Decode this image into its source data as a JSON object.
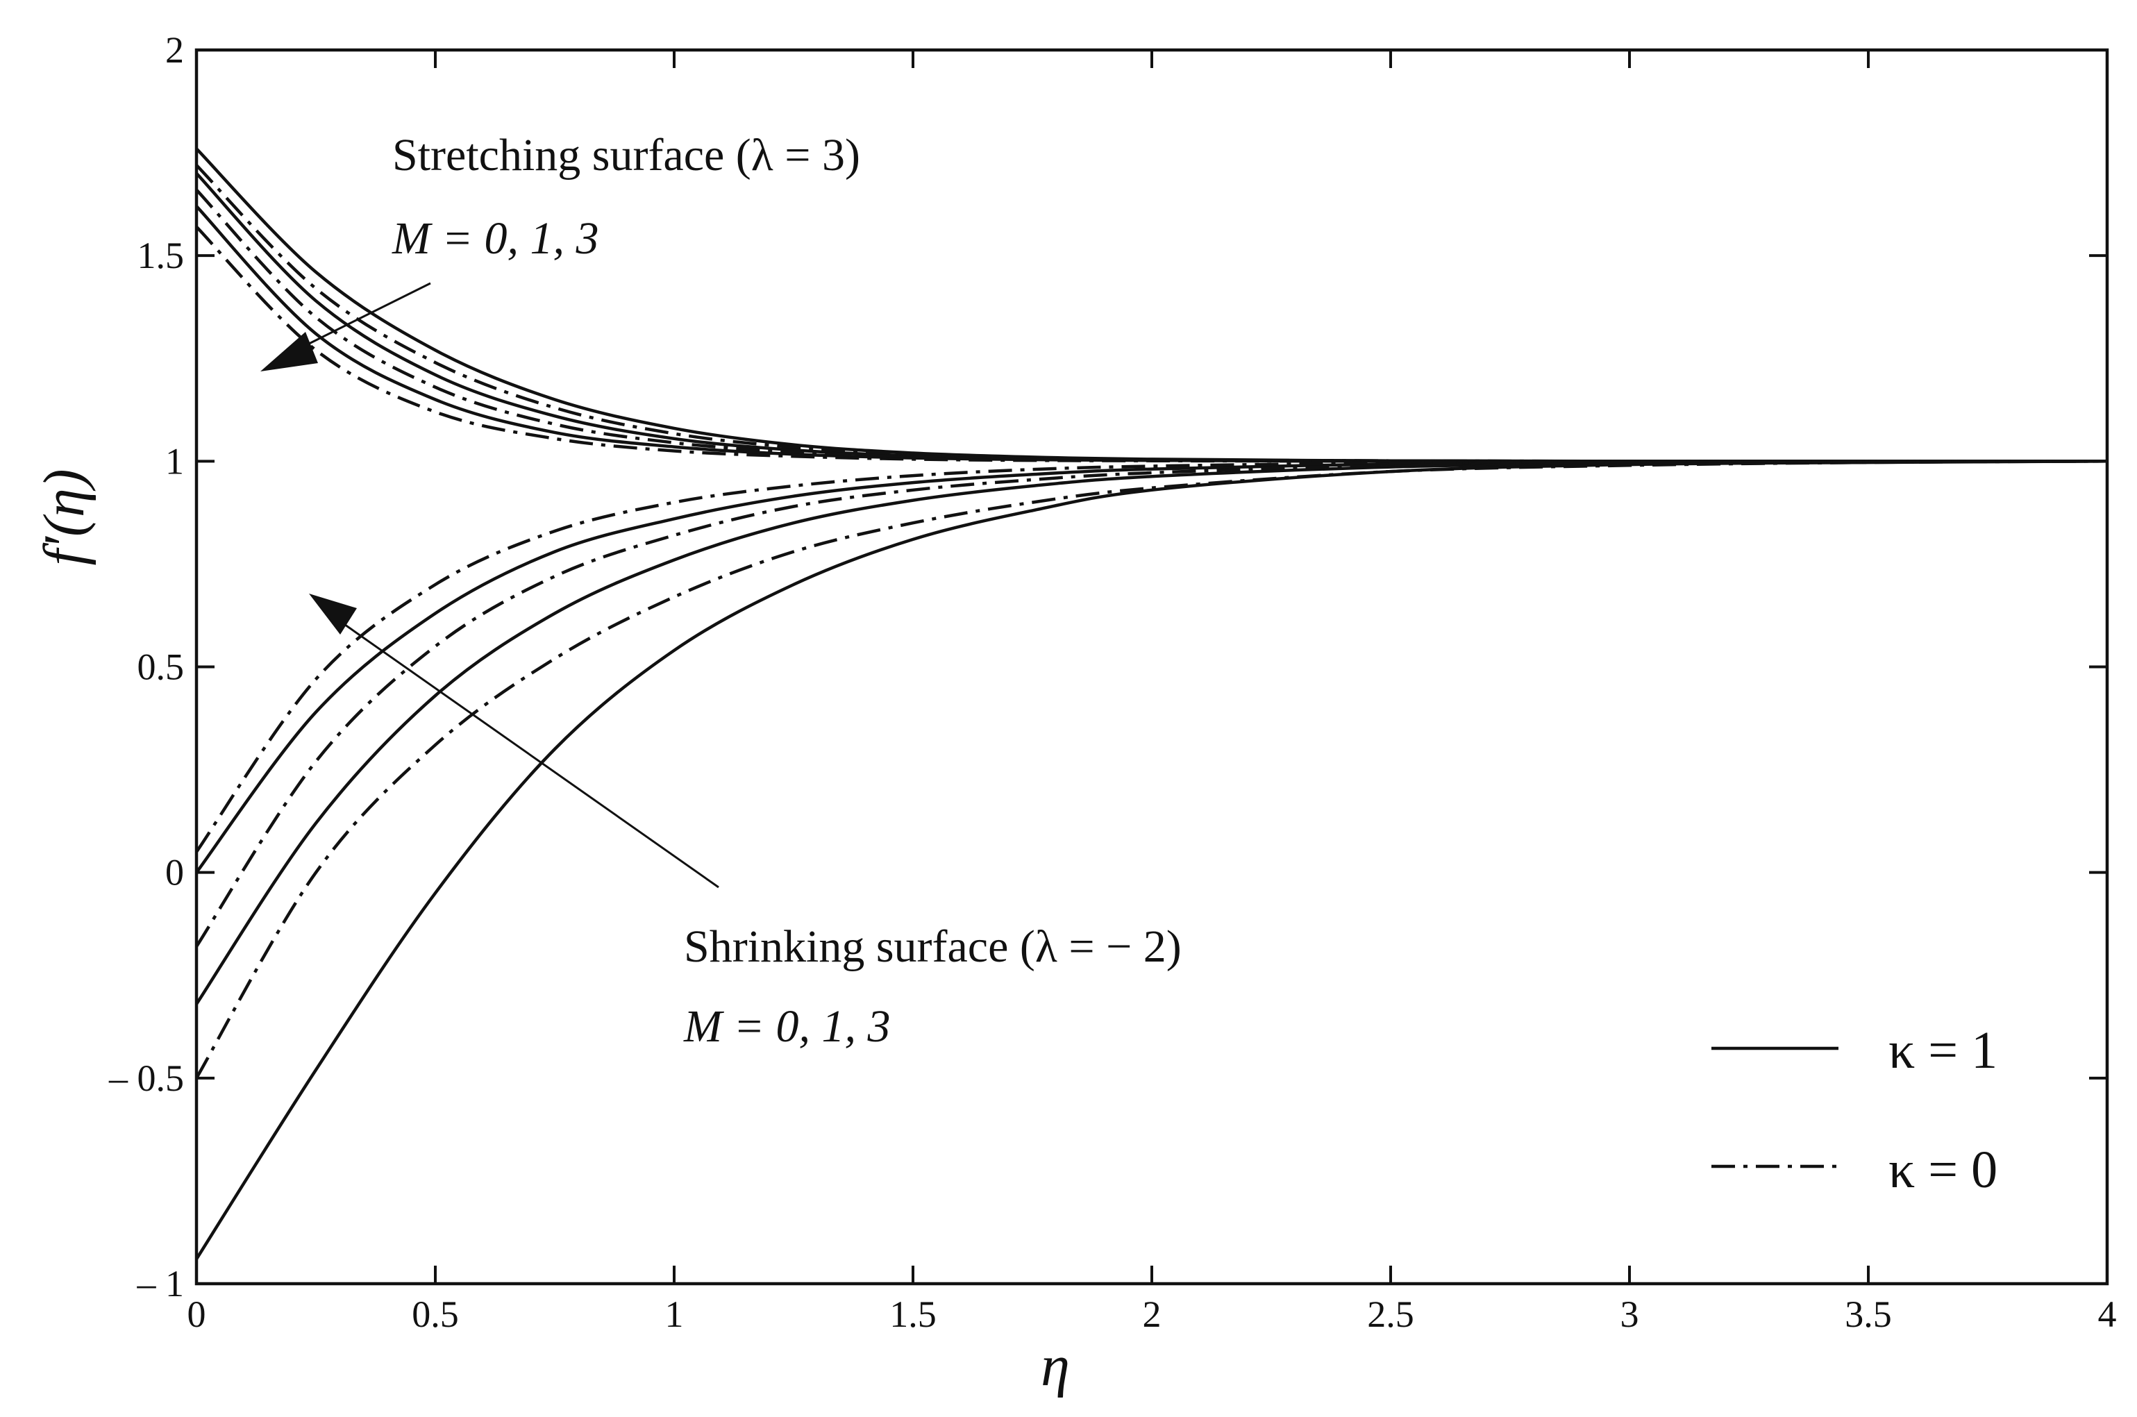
{
  "chart_data": {
    "type": "line",
    "title": "",
    "xlabel": "η",
    "ylabel": "f′(η)",
    "xlim": [
      0,
      4
    ],
    "ylim": [
      -1,
      2
    ],
    "xticks": [
      "0",
      "0.5",
      "1",
      "1.5",
      "2",
      "2.5",
      "3",
      "3.5",
      "4"
    ],
    "yticks": [
      "– 1",
      "– 0.5",
      "0",
      "0.5",
      "1",
      "1.5",
      "2"
    ],
    "x": [
      0,
      0.25,
      0.5,
      0.75,
      1,
      1.25,
      1.5,
      1.75,
      2,
      2.5,
      3,
      3.5,
      4
    ],
    "series": [
      {
        "name": "Stretching λ=3, κ=1, M=0",
        "style": "solid",
        "values": [
          1.76,
          1.46,
          1.27,
          1.15,
          1.08,
          1.04,
          1.02,
          1.01,
          1.005,
          1.001,
          1.0,
          1.0,
          1.0
        ]
      },
      {
        "name": "Stretching λ=3, κ=1, M=1",
        "style": "solid",
        "values": [
          1.7,
          1.39,
          1.21,
          1.11,
          1.055,
          1.027,
          1.013,
          1.006,
          1.003,
          1.001,
          1.0,
          1.0,
          1.0
        ]
      },
      {
        "name": "Stretching λ=3, κ=1, M=3",
        "style": "solid",
        "values": [
          1.62,
          1.31,
          1.15,
          1.07,
          1.035,
          1.017,
          1.008,
          1.004,
          1.002,
          1.0,
          1.0,
          1.0,
          1.0
        ]
      },
      {
        "name": "Stretching λ=3, κ=0, M=0",
        "style": "dashdot",
        "values": [
          1.72,
          1.42,
          1.24,
          1.13,
          1.067,
          1.034,
          1.017,
          1.009,
          1.004,
          1.001,
          1.0,
          1.0,
          1.0
        ]
      },
      {
        "name": "Stretching λ=3, κ=0, M=1",
        "style": "dashdot",
        "values": [
          1.66,
          1.35,
          1.18,
          1.09,
          1.045,
          1.022,
          1.011,
          1.005,
          1.003,
          1.0,
          1.0,
          1.0,
          1.0
        ]
      },
      {
        "name": "Stretching λ=3, κ=0, M=3",
        "style": "dashdot",
        "values": [
          1.57,
          1.27,
          1.12,
          1.055,
          1.025,
          1.012,
          1.005,
          1.002,
          1.001,
          1.0,
          1.0,
          1.0,
          1.0
        ]
      },
      {
        "name": "Shrinking λ=−2, κ=1, M=0",
        "style": "solid",
        "values": [
          -0.94,
          -0.48,
          -0.05,
          0.3,
          0.54,
          0.7,
          0.81,
          0.88,
          0.93,
          0.975,
          0.992,
          0.997,
          1.0
        ]
      },
      {
        "name": "Shrinking λ=−2, κ=1, M=1",
        "style": "solid",
        "values": [
          -0.32,
          0.12,
          0.43,
          0.63,
          0.76,
          0.85,
          0.905,
          0.94,
          0.963,
          0.986,
          0.995,
          0.998,
          1.0
        ]
      },
      {
        "name": "Shrinking λ=−2, κ=1, M=3",
        "style": "solid",
        "values": [
          0.0,
          0.39,
          0.63,
          0.78,
          0.86,
          0.915,
          0.948,
          0.968,
          0.981,
          0.993,
          0.998,
          0.999,
          1.0
        ]
      },
      {
        "name": "Shrinking λ=−2, κ=0, M=0",
        "style": "dashdot",
        "values": [
          -0.5,
          0.0,
          0.31,
          0.52,
          0.67,
          0.78,
          0.85,
          0.9,
          0.935,
          0.975,
          0.99,
          0.997,
          1.0
        ]
      },
      {
        "name": "Shrinking λ=−2, κ=0, M=1",
        "style": "dashdot",
        "values": [
          -0.18,
          0.27,
          0.55,
          0.72,
          0.82,
          0.89,
          0.93,
          0.955,
          0.972,
          0.99,
          0.996,
          0.999,
          1.0
        ]
      },
      {
        "name": "Shrinking λ=−2, κ=0, M=3",
        "style": "dashdot",
        "values": [
          0.05,
          0.47,
          0.7,
          0.83,
          0.9,
          0.94,
          0.965,
          0.98,
          0.988,
          0.996,
          0.999,
          1.0,
          1.0
        ]
      }
    ],
    "annotations": {
      "stretching_title": "Stretching surface (λ = 3)",
      "stretching_params": "M = 0, 1, 3",
      "shrinking_title": "Shrinking surface (λ = − 2)",
      "shrinking_params": "M = 0, 1, 3"
    },
    "legend": {
      "placement": "bottom-right",
      "entries": [
        {
          "label": "κ = 1",
          "style": "solid"
        },
        {
          "label": "κ = 0",
          "style": "dashdot"
        }
      ]
    }
  }
}
